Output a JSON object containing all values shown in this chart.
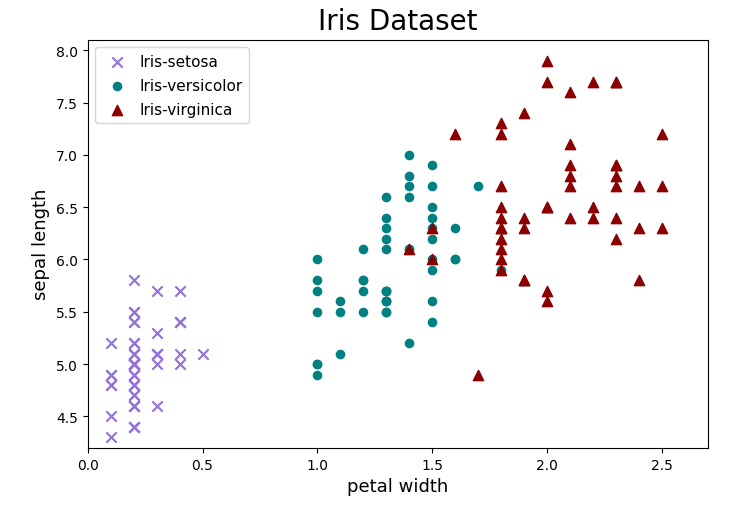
{
  "title": "Iris Dataset",
  "xlabel": "petal width",
  "ylabel": "sepal length",
  "xlim": [
    0.0,
    2.7
  ],
  "ylim": [
    4.2,
    8.1
  ],
  "classes": [
    "Iris-setosa",
    "Iris-versicolor",
    "Iris-virginica"
  ],
  "colors": [
    "mediumpurple",
    "teal",
    "darkred"
  ],
  "markers": [
    "x",
    "o",
    "^"
  ],
  "marker_sizes": [
    55,
    35,
    55
  ],
  "title_fontsize": 20,
  "label_fontsize": 13,
  "legend_fontsize": 11,
  "setosa_petal_width": [
    0.2,
    0.2,
    0.2,
    0.2,
    0.2,
    0.4,
    0.3,
    0.2,
    0.2,
    0.1,
    0.2,
    0.2,
    0.1,
    0.1,
    0.2,
    0.4,
    0.4,
    0.3,
    0.3,
    0.3,
    0.2,
    0.4,
    0.2,
    0.5,
    0.2,
    0.2,
    0.4,
    0.2,
    0.2,
    0.2,
    0.2,
    0.4,
    0.1,
    0.2,
    0.2,
    0.2,
    0.2,
    0.1,
    0.2,
    0.3,
    0.3,
    0.1,
    0.2,
    0.2,
    0.2,
    0.1,
    0.2,
    0.2,
    0.3,
    0.2
  ],
  "setosa_sepal_length": [
    5.1,
    4.9,
    4.7,
    4.6,
    5.0,
    5.4,
    4.6,
    5.0,
    4.4,
    4.9,
    5.4,
    4.8,
    4.8,
    4.3,
    5.8,
    5.7,
    5.4,
    5.1,
    5.7,
    5.1,
    5.4,
    5.1,
    4.6,
    5.1,
    4.8,
    5.0,
    5.0,
    5.2,
    5.2,
    4.7,
    4.8,
    5.4,
    5.2,
    5.5,
    4.9,
    5.0,
    5.5,
    4.9,
    4.4,
    5.1,
    5.0,
    4.5,
    4.4,
    5.0,
    5.1,
    4.8,
    5.1,
    4.6,
    5.3,
    5.0
  ],
  "versicolor_petal_width": [
    1.4,
    1.5,
    1.5,
    1.3,
    1.5,
    1.3,
    1.6,
    1.0,
    1.3,
    1.4,
    1.0,
    1.5,
    1.0,
    1.4,
    1.3,
    1.4,
    1.5,
    1.0,
    1.5,
    1.1,
    1.8,
    1.3,
    1.5,
    1.2,
    1.3,
    1.4,
    1.4,
    1.7,
    1.5,
    1.0,
    1.1,
    1.0,
    1.2,
    1.6,
    1.5,
    1.6,
    1.5,
    1.3,
    1.3,
    1.3,
    1.2,
    1.4,
    1.2,
    1.0,
    1.3,
    1.2,
    1.3,
    1.3,
    1.1,
    1.3
  ],
  "versicolor_sepal_length": [
    7.0,
    6.4,
    6.9,
    5.5,
    6.5,
    5.7,
    6.3,
    4.9,
    6.6,
    5.2,
    5.0,
    5.9,
    6.0,
    6.1,
    5.6,
    6.7,
    5.6,
    5.8,
    6.2,
    5.6,
    5.9,
    6.1,
    6.3,
    6.1,
    6.4,
    6.6,
    6.8,
    6.7,
    6.0,
    5.7,
    5.5,
    5.5,
    5.8,
    6.0,
    5.4,
    6.0,
    6.7,
    6.3,
    5.6,
    5.5,
    5.5,
    6.1,
    5.8,
    5.0,
    5.6,
    5.7,
    5.7,
    6.2,
    5.1,
    5.7
  ],
  "virginica_petal_width": [
    2.5,
    1.9,
    2.1,
    1.8,
    2.2,
    2.1,
    1.7,
    1.8,
    1.8,
    2.5,
    2.0,
    1.9,
    2.1,
    2.0,
    2.4,
    2.3,
    1.8,
    2.2,
    2.3,
    1.5,
    2.3,
    2.0,
    2.0,
    1.8,
    2.1,
    1.8,
    1.8,
    1.8,
    2.1,
    1.6,
    1.9,
    2.0,
    2.2,
    1.5,
    1.4,
    2.3,
    2.4,
    1.8,
    1.8,
    2.1,
    2.4,
    2.3,
    1.9,
    2.3,
    2.5,
    2.3,
    1.9,
    2.0,
    2.3,
    1.8
  ],
  "virginica_sepal_length": [
    6.3,
    5.8,
    7.1,
    6.3,
    6.5,
    7.6,
    4.9,
    7.3,
    6.7,
    7.2,
    6.5,
    6.4,
    6.8,
    5.7,
    5.8,
    6.4,
    6.5,
    7.7,
    7.7,
    6.0,
    6.9,
    5.6,
    7.7,
    6.3,
    6.7,
    7.2,
    6.2,
    6.1,
    6.4,
    7.2,
    7.4,
    7.9,
    6.4,
    6.3,
    6.1,
    7.7,
    6.3,
    6.4,
    6.0,
    6.9,
    6.7,
    6.9,
    5.8,
    6.8,
    6.7,
    6.7,
    6.3,
    6.5,
    6.2,
    5.9
  ]
}
